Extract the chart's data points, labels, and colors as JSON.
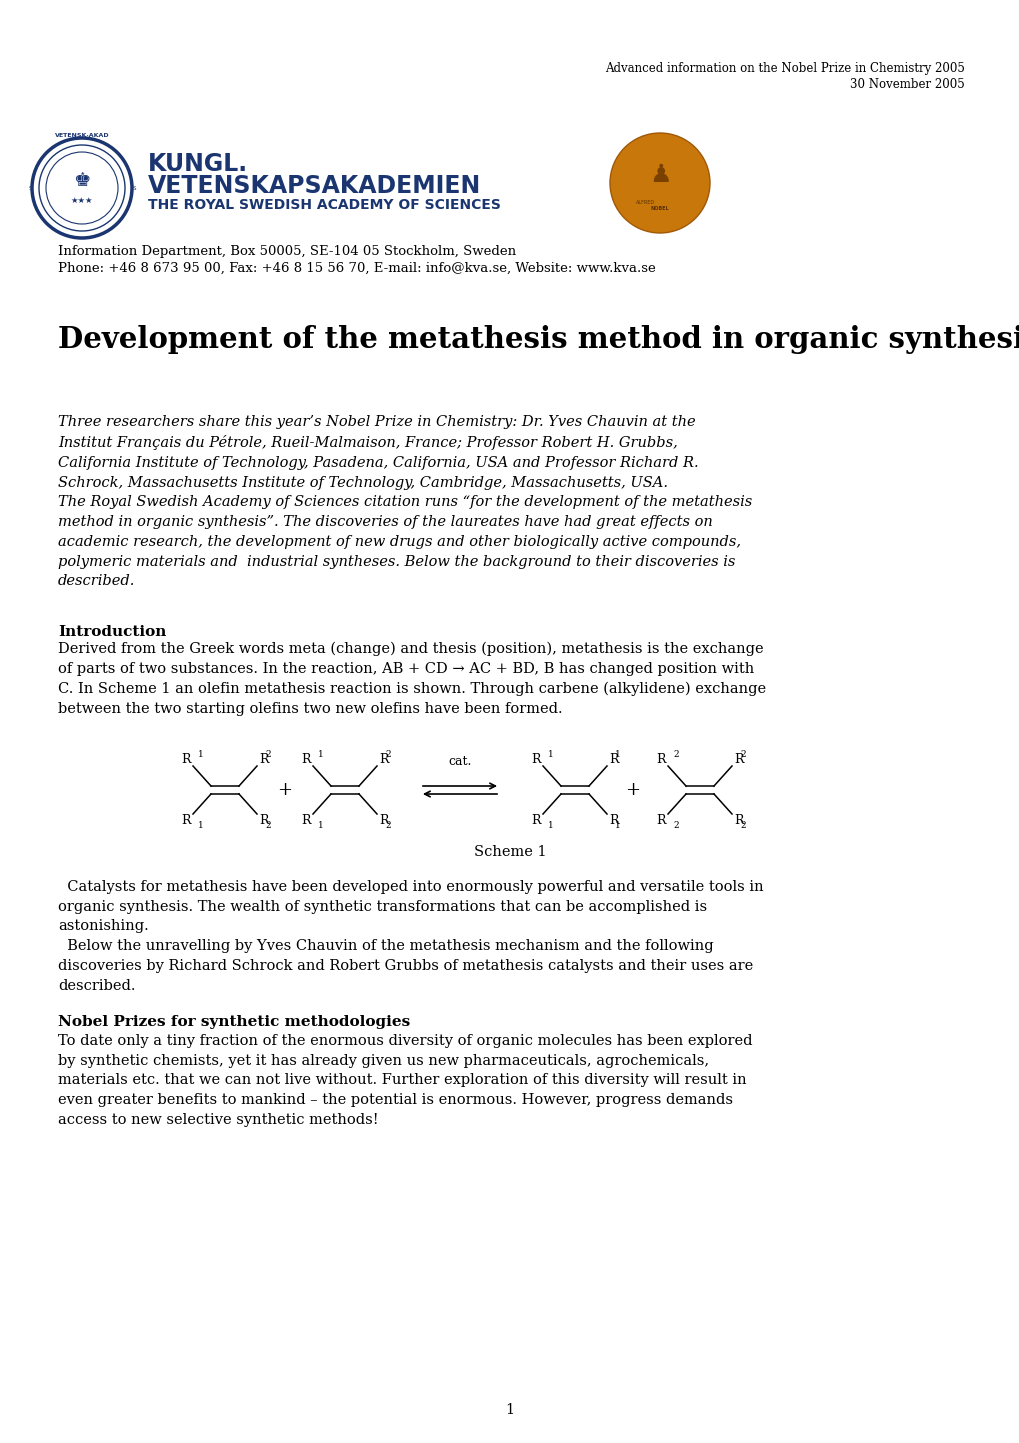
{
  "bg_color": "#ffffff",
  "header_right_line1": "Advanced information on the Nobel Prize in Chemistry 2005",
  "header_right_line2": "30 November 2005",
  "info_line1": "Information Department, Box 50005, SE-104 05 Stockholm, Sweden",
  "info_line2": "Phone: +46 8 673 95 00, Fax: +46 8 15 56 70, E-mail: info@kva.se, Website: www.kva.se",
  "main_title": "Development of the metathesis method in organic synthesis",
  "section1_title": "Introduction",
  "section1_text": "Derived from the Greek words meta (change) and thesis (position), metathesis is the exchange\nof parts of two substances. In the reaction, AB + CD → AC + BD, B has changed position with\nC. In Scheme 1 an olefin metathesis reaction is shown. Through carbene (alkylidene) exchange\nbetween the two starting olefins two new olefins have been formed.",
  "scheme1_caption": "Scheme 1",
  "para1_text": "  Catalysts for metathesis have been developed into enormously powerful and versatile tools in\norganic synthesis. The wealth of synthetic transformations that can be accomplished is\nastonishing.\n  Below the unravelling by Yves Chauvin of the metathesis mechanism and the following\ndiscoveries by Richard Schrock and Robert Grubbs of metathesis catalysts and their uses are\ndescribed.",
  "section2_title": "Nobel Prizes for synthetic methodologies",
  "section2_text": "To date only a tiny fraction of the enormous diversity of organic molecules has been explored\nby synthetic chemists, yet it has already given us new pharmaceuticals, agrochemicals,\nmaterials etc. that we can not live without. Further exploration of this diversity will result in\neven greater benefits to mankind – the potential is enormous. However, progress demands\naccess to new selective synthetic methods!",
  "page_number": "1",
  "text_color": "#000000",
  "blue_color": "#1a3570",
  "title_fontsize": 21,
  "body_fontsize": 10.5,
  "small_fontsize": 9.0,
  "section_title_fontsize": 11,
  "header_fontsize": 8.5,
  "info_fontsize": 9.5
}
